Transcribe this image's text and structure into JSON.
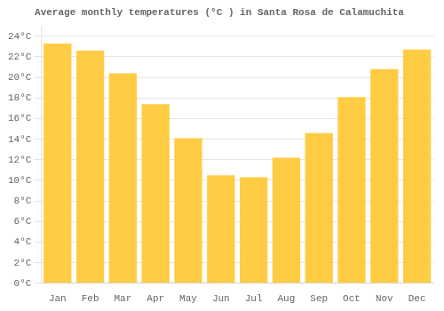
{
  "chart_data": {
    "type": "bar",
    "title": "Average monthly temperatures (°C ) in Santa Rosa de Calamuchita",
    "categories": [
      "Jan",
      "Feb",
      "Mar",
      "Apr",
      "May",
      "Jun",
      "Jul",
      "Aug",
      "Sep",
      "Oct",
      "Nov",
      "Dec"
    ],
    "values": [
      23.3,
      22.6,
      20.4,
      17.4,
      14.1,
      10.5,
      10.3,
      12.2,
      14.6,
      18.1,
      20.8,
      22.7
    ],
    "color": "#FFCC44",
    "ylim": [
      0,
      25
    ],
    "yticks": [
      {
        "value": 0,
        "label": "0°C"
      },
      {
        "value": 2,
        "label": "2°C"
      },
      {
        "value": 4,
        "label": "4°C"
      },
      {
        "value": 6,
        "label": "6°C"
      },
      {
        "value": 8,
        "label": "8°C"
      },
      {
        "value": 10,
        "label": "10°C"
      },
      {
        "value": 12,
        "label": "12°C"
      },
      {
        "value": 14,
        "label": "14°C"
      },
      {
        "value": 16,
        "label": "16°C"
      },
      {
        "value": 18,
        "label": "18°C"
      },
      {
        "value": 20,
        "label": "20°C"
      },
      {
        "value": 22,
        "label": "22°C"
      },
      {
        "value": 24,
        "label": "24°C"
      }
    ],
    "grid": true
  }
}
